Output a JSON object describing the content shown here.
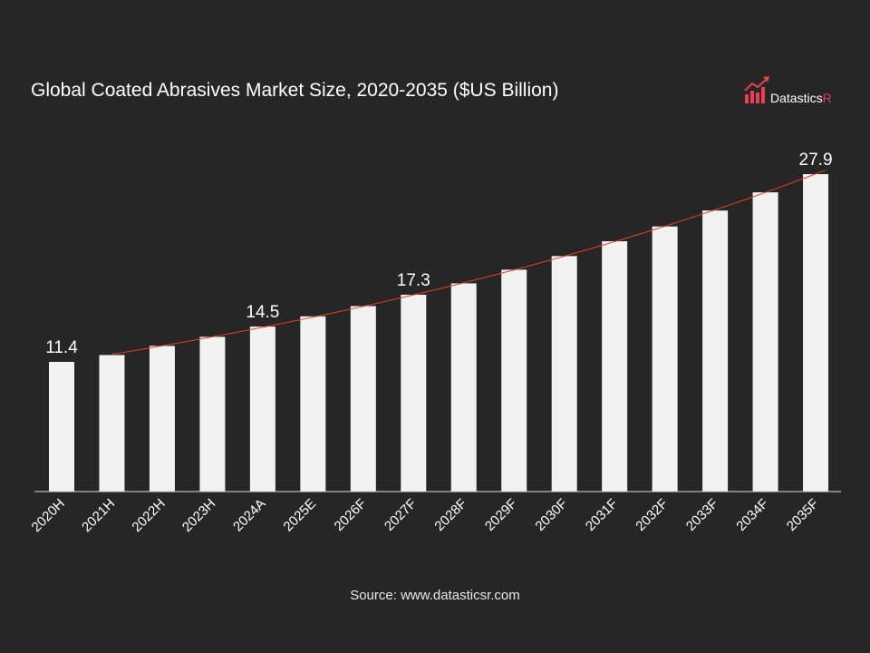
{
  "chart_data": {
    "type": "bar",
    "title": "Global Coated Abrasives Market Size, 2020-2035 ($US Billion)",
    "categories": [
      "2020H",
      "2021H",
      "2022H",
      "2023H",
      "2024A",
      "2025E",
      "2026F",
      "2027F",
      "2028F",
      "2029F",
      "2030F",
      "2031F",
      "2032F",
      "2033F",
      "2034F",
      "2035F"
    ],
    "values": [
      11.4,
      12.0,
      12.8,
      13.6,
      14.5,
      15.4,
      16.3,
      17.3,
      18.3,
      19.5,
      20.7,
      22.0,
      23.3,
      24.7,
      26.3,
      27.9
    ],
    "data_labels": {
      "2020H": "11.4",
      "2024A": "14.5",
      "2027F": "17.3",
      "2035F": "27.9"
    },
    "ylim": [
      0,
      28
    ],
    "grid": false,
    "trendline": "exponential",
    "colors": {
      "bar": "#f2f2f2",
      "trend": "#e8401c",
      "background": "#262626",
      "axis": "#d9d9d9"
    }
  },
  "logo": {
    "text_main": "Datastics",
    "text_accent": "R",
    "accent_color": "#e8404f"
  },
  "source": "Source: www.datasticsr.com"
}
